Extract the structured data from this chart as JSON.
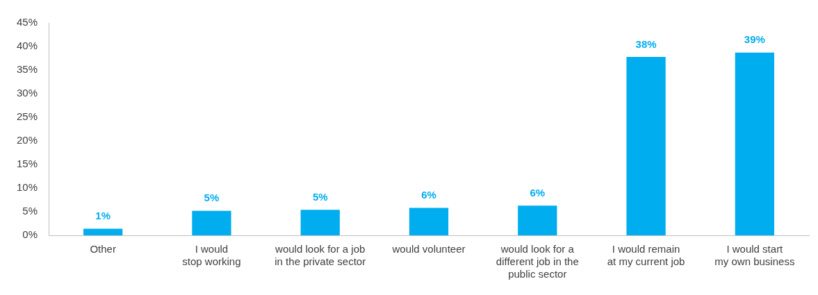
{
  "chart_data": {
    "type": "bar",
    "categories": [
      "Other",
      "I would\nstop working",
      "would look for a job\nin the private sector",
      "would volunteer",
      "would look for a\ndifferent job in the\npublic sector",
      "I would remain\nat my current job",
      "I would start\nmy own business"
    ],
    "values": [
      1.4,
      5.2,
      5.4,
      5.8,
      6.3,
      37.8,
      38.7
    ],
    "value_labels": [
      "1%",
      "5%",
      "5%",
      "6%",
      "6%",
      "38%",
      "39%"
    ],
    "color": "#00adef",
    "ylim": [
      0,
      45
    ],
    "yticks": [
      {
        "value": 0,
        "label": "0%"
      },
      {
        "value": 5,
        "label": "5%"
      },
      {
        "value": 10,
        "label": "10%"
      },
      {
        "value": 15,
        "label": "15%"
      },
      {
        "value": 20,
        "label": "20%"
      },
      {
        "value": 25,
        "label": "25%"
      },
      {
        "value": 30,
        "label": "30%"
      },
      {
        "value": 35,
        "label": "35%"
      },
      {
        "value": 40,
        "label": "40%"
      },
      {
        "value": 45,
        "label": "45%"
      }
    ],
    "grid": false,
    "legend": false
  }
}
